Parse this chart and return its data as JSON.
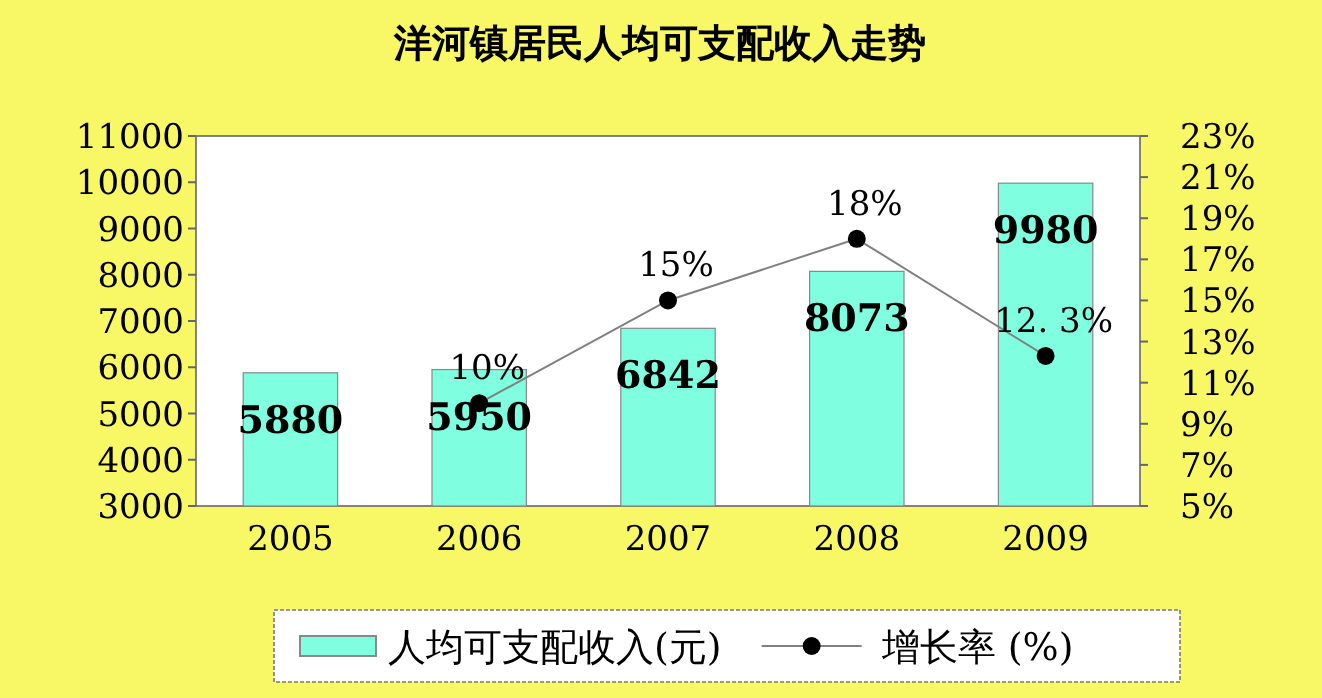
{
  "chart_data": {
    "type": "bar",
    "title": "洋河镇居民人均可支配收入走势",
    "categories": [
      "2005",
      "2006",
      "2007",
      "2008",
      "2009"
    ],
    "ylim": [
      3000,
      11000
    ],
    "yticks": [
      3000,
      4000,
      5000,
      6000,
      7000,
      8000,
      9000,
      10000,
      11000
    ],
    "y2lim": [
      5,
      23
    ],
    "y2ticks": [
      {
        "value": 5,
        "label": "5%"
      },
      {
        "value": 7,
        "label": "7%"
      },
      {
        "value": 9,
        "label": "9%"
      },
      {
        "value": 11,
        "label": "11%"
      },
      {
        "value": 13,
        "label": "13%"
      },
      {
        "value": 15,
        "label": "15%"
      },
      {
        "value": 17,
        "label": "17%"
      },
      {
        "value": 19,
        "label": "19%"
      },
      {
        "value": 21,
        "label": "21%"
      },
      {
        "value": 23,
        "label": "23%"
      }
    ],
    "legend": "bottom",
    "grid": false,
    "series": [
      {
        "name": "人均可支配收入(元)",
        "color": "#7fffdf",
        "values": [
          5880,
          5950,
          6842,
          8073,
          9980
        ],
        "value_labels": [
          "5880",
          "5950",
          "6842",
          "8073",
          "9980"
        ]
      },
      {
        "name": "增长率 (%)",
        "type": "line",
        "axis": "y2",
        "color": "#808080",
        "marker": "circle",
        "values": [
          null,
          10,
          15,
          18,
          12.3
        ],
        "value_labels": [
          null,
          "10%",
          "15%",
          "18%",
          "12. 3%"
        ]
      }
    ]
  }
}
